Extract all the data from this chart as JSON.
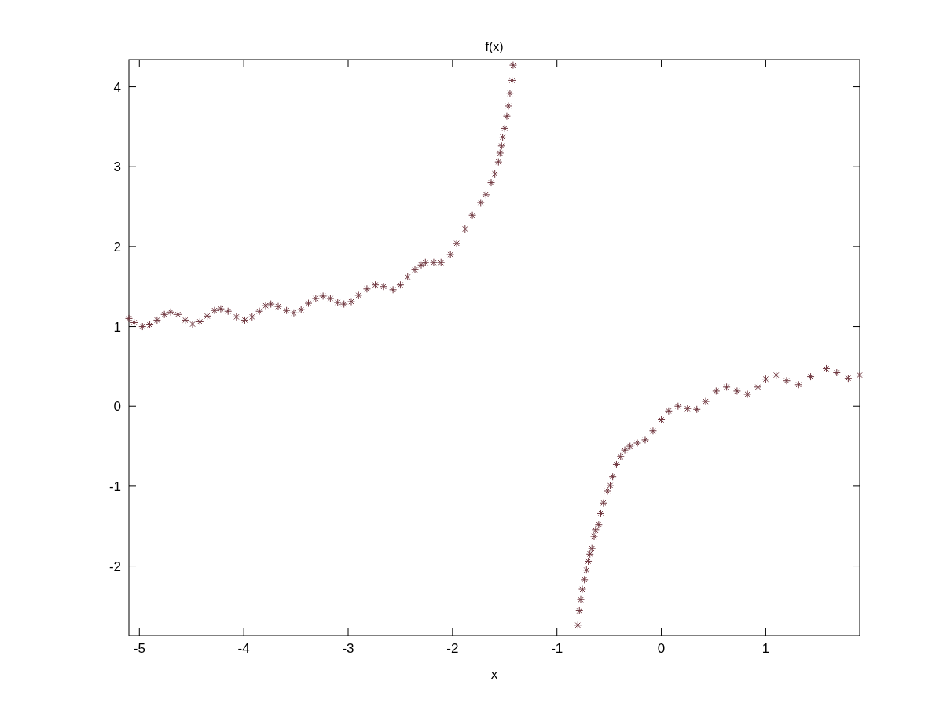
{
  "chart_data": {
    "type": "scatter",
    "title": "f(x)",
    "xlabel": "x",
    "xlim": [
      -5.1,
      1.9
    ],
    "ylim": [
      -2.87,
      4.34
    ],
    "xticks": [
      -5,
      -4,
      -3,
      -2,
      -1,
      0,
      1
    ],
    "yticks": [
      -2,
      -1,
      0,
      1,
      2,
      3,
      4
    ],
    "grid": false,
    "marker": "cross",
    "series": [
      {
        "color": "#703840",
        "x": [
          -5.1,
          -5.05,
          -4.97,
          -4.9,
          -4.83,
          -4.76,
          -4.7,
          -4.63,
          -4.56,
          -4.49,
          -4.42,
          -4.35,
          -4.28,
          -4.22,
          -4.15,
          -4.07,
          -3.99,
          -3.92,
          -3.85,
          -3.79,
          -3.74,
          -3.67,
          -3.59,
          -3.52,
          -3.45,
          -3.38,
          -3.31,
          -3.24,
          -3.17,
          -3.1,
          -3.04,
          -2.97,
          -2.9,
          -2.82,
          -2.74,
          -2.66,
          -2.57,
          -2.5,
          -2.43,
          -2.36,
          -2.3,
          -2.26,
          -2.18,
          -2.11,
          -2.02,
          -1.96,
          -1.88,
          -1.81,
          -1.73,
          -1.68,
          -1.63,
          -1.595,
          -1.56,
          -1.545,
          -1.53,
          -1.52,
          -1.5,
          -1.48,
          -1.465,
          -1.45,
          -1.43,
          -1.42,
          -0.8,
          -0.785,
          -0.772,
          -0.757,
          -0.737,
          -0.717,
          -0.7,
          -0.684,
          -0.665,
          -0.644,
          -0.63,
          -0.6,
          -0.58,
          -0.555,
          -0.516,
          -0.49,
          -0.466,
          -0.43,
          -0.39,
          -0.35,
          -0.3,
          -0.23,
          -0.155,
          -0.08,
          0,
          0.07,
          0.16,
          0.25,
          0.34,
          0.425,
          0.525,
          0.625,
          0.725,
          0.825,
          0.925,
          1,
          1.1,
          1.2,
          1.315,
          1.43,
          1.58,
          1.68,
          1.79,
          1.9
        ],
        "values": [
          1.1,
          1.05,
          1.0,
          1.02,
          1.08,
          1.15,
          1.18,
          1.15,
          1.08,
          1.03,
          1.06,
          1.13,
          1.2,
          1.22,
          1.19,
          1.12,
          1.08,
          1.12,
          1.19,
          1.26,
          1.28,
          1.25,
          1.2,
          1.17,
          1.21,
          1.29,
          1.35,
          1.38,
          1.35,
          1.3,
          1.28,
          1.31,
          1.39,
          1.47,
          1.52,
          1.5,
          1.46,
          1.52,
          1.62,
          1.71,
          1.77,
          1.8,
          1.8,
          1.8,
          1.9,
          2.04,
          2.22,
          2.39,
          2.55,
          2.65,
          2.8,
          2.91,
          3.06,
          3.17,
          3.26,
          3.37,
          3.48,
          3.63,
          3.76,
          3.92,
          4.08,
          4.27,
          -2.74,
          -2.56,
          -2.42,
          -2.29,
          -2.17,
          -2.05,
          -1.94,
          -1.85,
          -1.78,
          -1.63,
          -1.55,
          -1.48,
          -1.34,
          -1.21,
          -1.06,
          -0.99,
          -0.88,
          -0.73,
          -0.63,
          -0.55,
          -0.5,
          -0.46,
          -0.42,
          -0.31,
          -0.17,
          -0.06,
          0,
          -0.03,
          -0.04,
          0.06,
          0.19,
          0.24,
          0.19,
          0.15,
          0.24,
          0.34,
          0.39,
          0.32,
          0.27,
          0.37,
          0.47,
          0.42,
          0.35,
          0.39
        ]
      }
    ]
  }
}
